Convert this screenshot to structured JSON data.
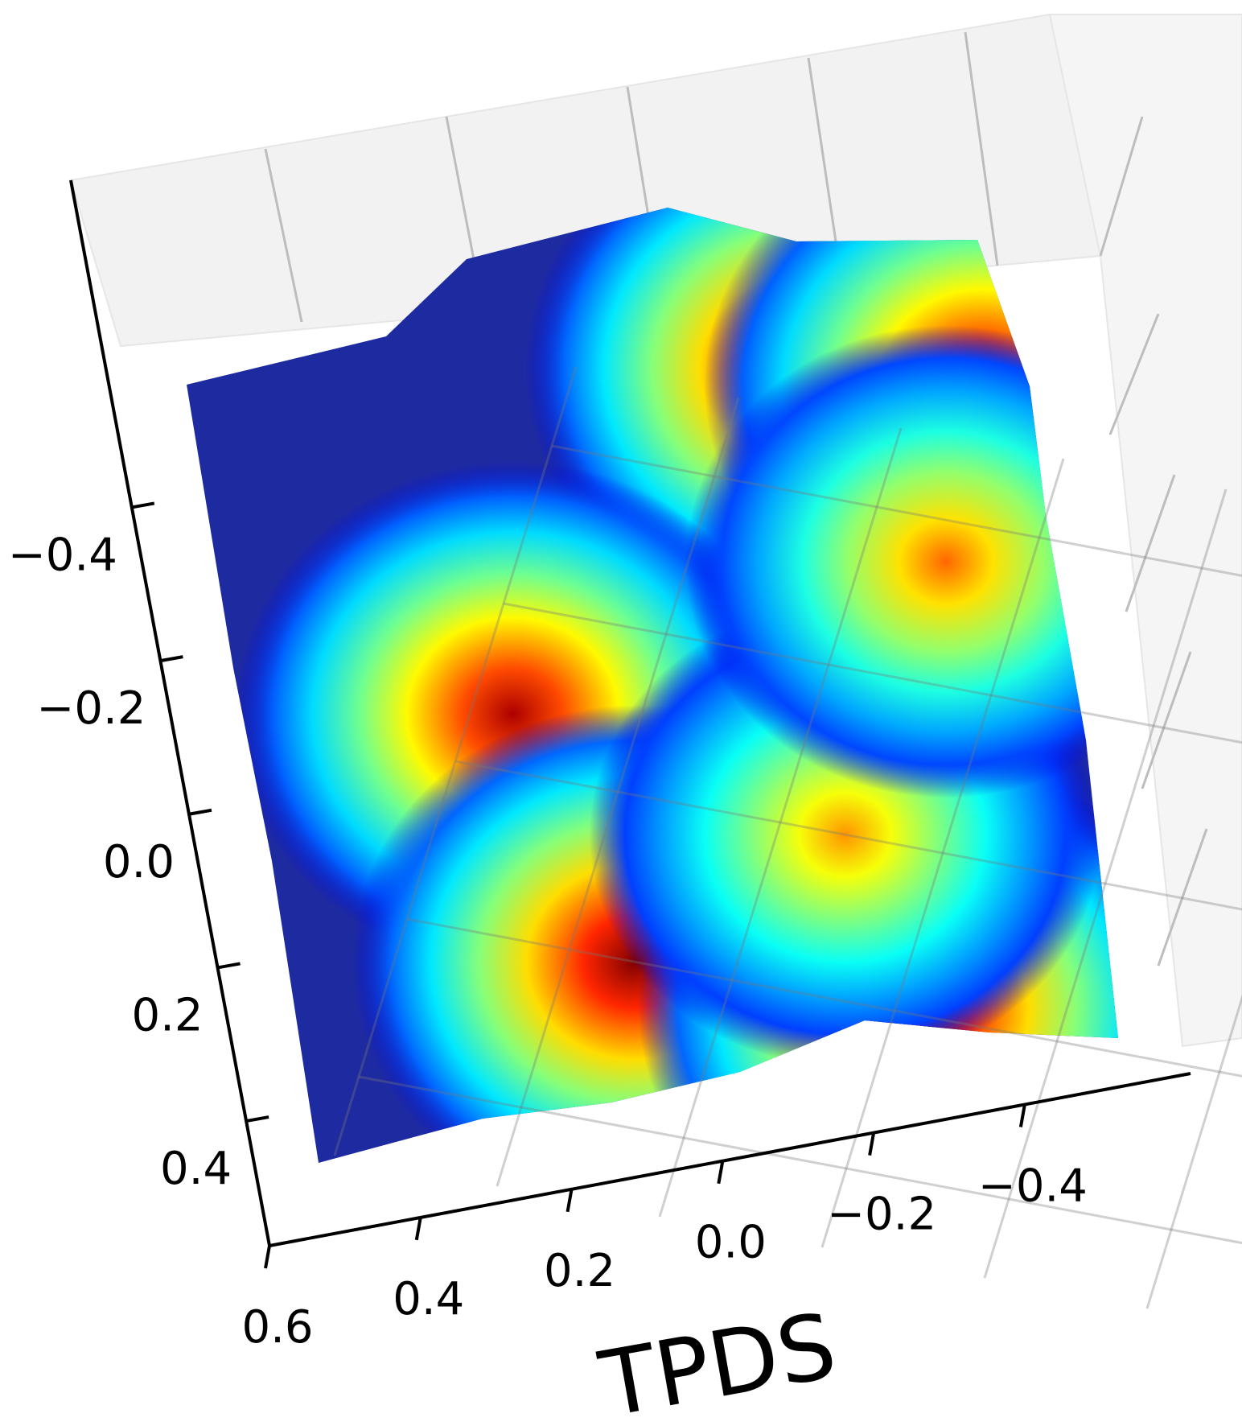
{
  "chart_data": {
    "type": "surface",
    "title": "",
    "colormap": "jet",
    "xlabel": "TPDS",
    "ylabel": "",
    "zlabel": "",
    "x_ticks": [
      "0.6",
      "0.4",
      "0.2",
      "0.0",
      "−0.2",
      "−0.4"
    ],
    "y_ticks": [
      "−0.4",
      "−0.2",
      "0.0",
      "0.2",
      "0.4"
    ],
    "x_range": [
      -0.5,
      0.6
    ],
    "y_range": [
      -0.5,
      0.5
    ],
    "grid": true,
    "peaks": [
      {
        "x": 0.33,
        "y": -0.55,
        "height": 1.0
      },
      {
        "x": 0.12,
        "y": -0.57,
        "height": 0.95
      },
      {
        "x": -0.25,
        "y": -0.45,
        "height": 1.0
      },
      {
        "x": 0.55,
        "y": -0.07,
        "height": 0.95
      },
      {
        "x": 0.32,
        "y": 0.2,
        "height": 1.0
      },
      {
        "x": -0.03,
        "y": 0.19,
        "height": 1.0
      },
      {
        "x": 0.12,
        "y": 0.0,
        "height": 0.7
      },
      {
        "x": 0.1,
        "y": -0.35,
        "height": 0.75
      }
    ]
  }
}
